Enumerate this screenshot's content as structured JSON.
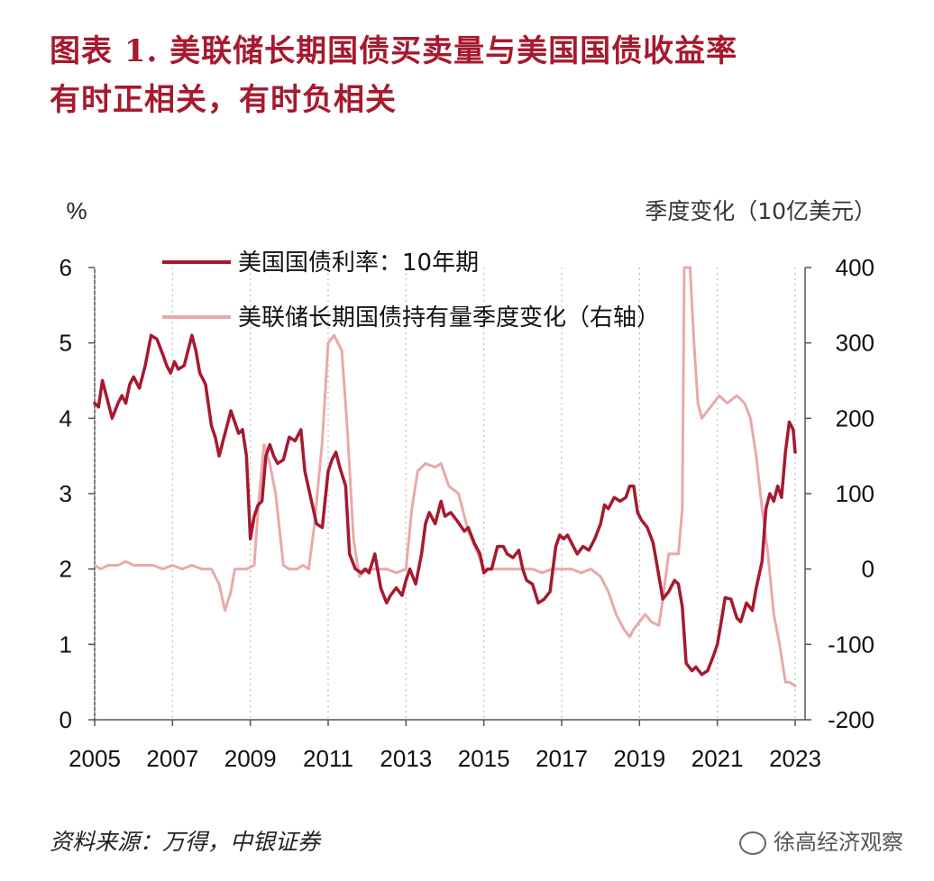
{
  "header": {
    "title_line1": "图表  1.   美联储长期国债买卖量与美国国债收益率",
    "title_line2": "有时正相关，有时负相关"
  },
  "footer": {
    "source": "资料来源：万得，中银证券",
    "watermark": "徐高经济观察"
  },
  "chart_data": {
    "type": "line",
    "left_axis": {
      "unit_label": "%",
      "ticks": [
        "0",
        "1",
        "2",
        "3",
        "4",
        "5",
        "6"
      ],
      "ylim": [
        0,
        6
      ]
    },
    "right_axis": {
      "unit_label": "季度变化（10亿美元）",
      "ticks": [
        "-200",
        "-100",
        "0",
        "100",
        "200",
        "300",
        "400"
      ],
      "ylim": [
        -200,
        400
      ]
    },
    "x_axis": {
      "ticks": [
        "2005",
        "2007",
        "2009",
        "2011",
        "2013",
        "2015",
        "2017",
        "2019",
        "2021",
        "2023"
      ],
      "xlim": [
        2005,
        2023
      ]
    },
    "grid": true,
    "colors": {
      "yield": "#a6192e",
      "holdings": "#e8a9aa",
      "title": "#a6192e"
    },
    "series": [
      {
        "name": "美国国债利率：10年期",
        "axis": "left",
        "points": [
          [
            2005.0,
            4.2
          ],
          [
            2005.1,
            4.15
          ],
          [
            2005.2,
            4.5
          ],
          [
            2005.35,
            4.2
          ],
          [
            2005.45,
            4.0
          ],
          [
            2005.6,
            4.2
          ],
          [
            2005.7,
            4.3
          ],
          [
            2005.8,
            4.2
          ],
          [
            2005.9,
            4.45
          ],
          [
            2006.0,
            4.55
          ],
          [
            2006.15,
            4.4
          ],
          [
            2006.3,
            4.7
          ],
          [
            2006.45,
            5.1
          ],
          [
            2006.6,
            5.05
          ],
          [
            2006.75,
            4.85
          ],
          [
            2006.85,
            4.7
          ],
          [
            2006.95,
            4.6
          ],
          [
            2007.05,
            4.75
          ],
          [
            2007.15,
            4.65
          ],
          [
            2007.3,
            4.7
          ],
          [
            2007.4,
            4.9
          ],
          [
            2007.5,
            5.1
          ],
          [
            2007.6,
            4.9
          ],
          [
            2007.7,
            4.6
          ],
          [
            2007.85,
            4.45
          ],
          [
            2008.0,
            3.9
          ],
          [
            2008.1,
            3.75
          ],
          [
            2008.2,
            3.5
          ],
          [
            2008.3,
            3.7
          ],
          [
            2008.4,
            3.9
          ],
          [
            2008.5,
            4.1
          ],
          [
            2008.6,
            3.95
          ],
          [
            2008.7,
            3.8
          ],
          [
            2008.8,
            3.85
          ],
          [
            2008.9,
            3.5
          ],
          [
            2009.0,
            2.4
          ],
          [
            2009.1,
            2.7
          ],
          [
            2009.2,
            2.85
          ],
          [
            2009.3,
            2.9
          ],
          [
            2009.4,
            3.5
          ],
          [
            2009.5,
            3.65
          ],
          [
            2009.6,
            3.5
          ],
          [
            2009.7,
            3.4
          ],
          [
            2009.85,
            3.45
          ],
          [
            2010.0,
            3.75
          ],
          [
            2010.15,
            3.7
          ],
          [
            2010.3,
            3.85
          ],
          [
            2010.4,
            3.3
          ],
          [
            2010.55,
            2.95
          ],
          [
            2010.7,
            2.6
          ],
          [
            2010.85,
            2.55
          ],
          [
            2011.0,
            3.3
          ],
          [
            2011.1,
            3.45
          ],
          [
            2011.2,
            3.55
          ],
          [
            2011.3,
            3.35
          ],
          [
            2011.45,
            3.1
          ],
          [
            2011.55,
            2.2
          ],
          [
            2011.7,
            2.0
          ],
          [
            2011.85,
            1.95
          ],
          [
            2011.95,
            2.0
          ],
          [
            2012.05,
            1.95
          ],
          [
            2012.2,
            2.2
          ],
          [
            2012.35,
            1.75
          ],
          [
            2012.5,
            1.55
          ],
          [
            2012.6,
            1.65
          ],
          [
            2012.75,
            1.75
          ],
          [
            2012.9,
            1.65
          ],
          [
            2013.0,
            1.85
          ],
          [
            2013.1,
            2.0
          ],
          [
            2013.25,
            1.8
          ],
          [
            2013.4,
            2.2
          ],
          [
            2013.5,
            2.6
          ],
          [
            2013.6,
            2.75
          ],
          [
            2013.75,
            2.6
          ],
          [
            2013.9,
            2.9
          ],
          [
            2014.0,
            2.7
          ],
          [
            2014.15,
            2.75
          ],
          [
            2014.3,
            2.65
          ],
          [
            2014.5,
            2.5
          ],
          [
            2014.6,
            2.55
          ],
          [
            2014.75,
            2.35
          ],
          [
            2014.9,
            2.2
          ],
          [
            2015.0,
            1.95
          ],
          [
            2015.1,
            2.0
          ],
          [
            2015.2,
            2.0
          ],
          [
            2015.35,
            2.3
          ],
          [
            2015.5,
            2.3
          ],
          [
            2015.6,
            2.2
          ],
          [
            2015.75,
            2.15
          ],
          [
            2015.9,
            2.25
          ],
          [
            2016.0,
            2.0
          ],
          [
            2016.1,
            1.85
          ],
          [
            2016.25,
            1.8
          ],
          [
            2016.4,
            1.55
          ],
          [
            2016.55,
            1.6
          ],
          [
            2016.7,
            1.7
          ],
          [
            2016.85,
            2.3
          ],
          [
            2016.95,
            2.45
          ],
          [
            2017.05,
            2.4
          ],
          [
            2017.15,
            2.45
          ],
          [
            2017.3,
            2.3
          ],
          [
            2017.4,
            2.2
          ],
          [
            2017.55,
            2.3
          ],
          [
            2017.7,
            2.25
          ],
          [
            2017.85,
            2.4
          ],
          [
            2018.0,
            2.6
          ],
          [
            2018.1,
            2.85
          ],
          [
            2018.2,
            2.8
          ],
          [
            2018.35,
            2.95
          ],
          [
            2018.5,
            2.9
          ],
          [
            2018.65,
            2.95
          ],
          [
            2018.75,
            3.1
          ],
          [
            2018.85,
            3.1
          ],
          [
            2018.95,
            2.75
          ],
          [
            2019.05,
            2.65
          ],
          [
            2019.2,
            2.55
          ],
          [
            2019.35,
            2.35
          ],
          [
            2019.45,
            2.05
          ],
          [
            2019.6,
            1.6
          ],
          [
            2019.75,
            1.7
          ],
          [
            2019.9,
            1.85
          ],
          [
            2020.0,
            1.8
          ],
          [
            2020.1,
            1.5
          ],
          [
            2020.2,
            0.75
          ],
          [
            2020.35,
            0.65
          ],
          [
            2020.45,
            0.7
          ],
          [
            2020.6,
            0.6
          ],
          [
            2020.75,
            0.65
          ],
          [
            2020.9,
            0.85
          ],
          [
            2021.0,
            1.0
          ],
          [
            2021.1,
            1.3
          ],
          [
            2021.2,
            1.62
          ],
          [
            2021.35,
            1.6
          ],
          [
            2021.5,
            1.35
          ],
          [
            2021.6,
            1.3
          ],
          [
            2021.75,
            1.55
          ],
          [
            2021.9,
            1.45
          ],
          [
            2022.0,
            1.75
          ],
          [
            2022.15,
            2.1
          ],
          [
            2022.25,
            2.8
          ],
          [
            2022.35,
            3.0
          ],
          [
            2022.45,
            2.9
          ],
          [
            2022.55,
            3.1
          ],
          [
            2022.65,
            2.95
          ],
          [
            2022.75,
            3.55
          ],
          [
            2022.85,
            3.95
          ],
          [
            2022.95,
            3.85
          ],
          [
            2023.0,
            3.55
          ]
        ]
      },
      {
        "name": "美联储长期国债持有量季度变化（右轴）",
        "axis": "right",
        "points": [
          [
            2005.0,
            5
          ],
          [
            2005.15,
            0
          ],
          [
            2005.35,
            5
          ],
          [
            2005.6,
            5
          ],
          [
            2005.8,
            10
          ],
          [
            2006.0,
            5
          ],
          [
            2006.25,
            5
          ],
          [
            2006.5,
            5
          ],
          [
            2006.75,
            0
          ],
          [
            2007.0,
            5
          ],
          [
            2007.25,
            0
          ],
          [
            2007.5,
            5
          ],
          [
            2007.75,
            0
          ],
          [
            2008.0,
            0
          ],
          [
            2008.2,
            -20
          ],
          [
            2008.35,
            -55
          ],
          [
            2008.5,
            -30
          ],
          [
            2008.6,
            0
          ],
          [
            2008.75,
            0
          ],
          [
            2008.9,
            0
          ],
          [
            2009.1,
            5
          ],
          [
            2009.2,
            80
          ],
          [
            2009.35,
            165
          ],
          [
            2009.5,
            140
          ],
          [
            2009.65,
            100
          ],
          [
            2009.85,
            5
          ],
          [
            2010.0,
            0
          ],
          [
            2010.2,
            0
          ],
          [
            2010.35,
            5
          ],
          [
            2010.5,
            0
          ],
          [
            2010.65,
            60
          ],
          [
            2010.85,
            170
          ],
          [
            2011.0,
            300
          ],
          [
            2011.15,
            310
          ],
          [
            2011.35,
            290
          ],
          [
            2011.5,
            180
          ],
          [
            2011.65,
            40
          ],
          [
            2011.8,
            -10
          ],
          [
            2012.0,
            0
          ],
          [
            2012.25,
            0
          ],
          [
            2012.5,
            0
          ],
          [
            2012.75,
            -5
          ],
          [
            2013.0,
            0
          ],
          [
            2013.15,
            80
          ],
          [
            2013.3,
            130
          ],
          [
            2013.5,
            140
          ],
          [
            2013.75,
            135
          ],
          [
            2013.9,
            140
          ],
          [
            2014.1,
            110
          ],
          [
            2014.35,
            100
          ],
          [
            2014.6,
            50
          ],
          [
            2014.85,
            20
          ],
          [
            2015.0,
            0
          ],
          [
            2015.25,
            0
          ],
          [
            2015.5,
            0
          ],
          [
            2015.75,
            0
          ],
          [
            2016.0,
            0
          ],
          [
            2016.25,
            0
          ],
          [
            2016.5,
            -5
          ],
          [
            2016.75,
            0
          ],
          [
            2017.0,
            0
          ],
          [
            2017.25,
            0
          ],
          [
            2017.5,
            -5
          ],
          [
            2017.75,
            0
          ],
          [
            2018.0,
            -10
          ],
          [
            2018.2,
            -30
          ],
          [
            2018.4,
            -60
          ],
          [
            2018.6,
            -80
          ],
          [
            2018.75,
            -90
          ],
          [
            2018.85,
            -80
          ],
          [
            2019.0,
            -70
          ],
          [
            2019.15,
            -60
          ],
          [
            2019.3,
            -70
          ],
          [
            2019.5,
            -75
          ],
          [
            2019.6,
            -40
          ],
          [
            2019.75,
            20
          ],
          [
            2020.0,
            20
          ],
          [
            2020.1,
            80
          ],
          [
            2020.15,
            400
          ],
          [
            2020.3,
            400
          ],
          [
            2020.4,
            300
          ],
          [
            2020.5,
            220
          ],
          [
            2020.6,
            200
          ],
          [
            2020.75,
            210
          ],
          [
            2020.9,
            220
          ],
          [
            2021.05,
            230
          ],
          [
            2021.25,
            220
          ],
          [
            2021.5,
            230
          ],
          [
            2021.7,
            220
          ],
          [
            2021.85,
            200
          ],
          [
            2022.0,
            150
          ],
          [
            2022.15,
            80
          ],
          [
            2022.3,
            20
          ],
          [
            2022.45,
            -60
          ],
          [
            2022.6,
            -100
          ],
          [
            2022.75,
            -150
          ],
          [
            2022.85,
            -150
          ],
          [
            2023.0,
            -155
          ]
        ]
      }
    ]
  }
}
